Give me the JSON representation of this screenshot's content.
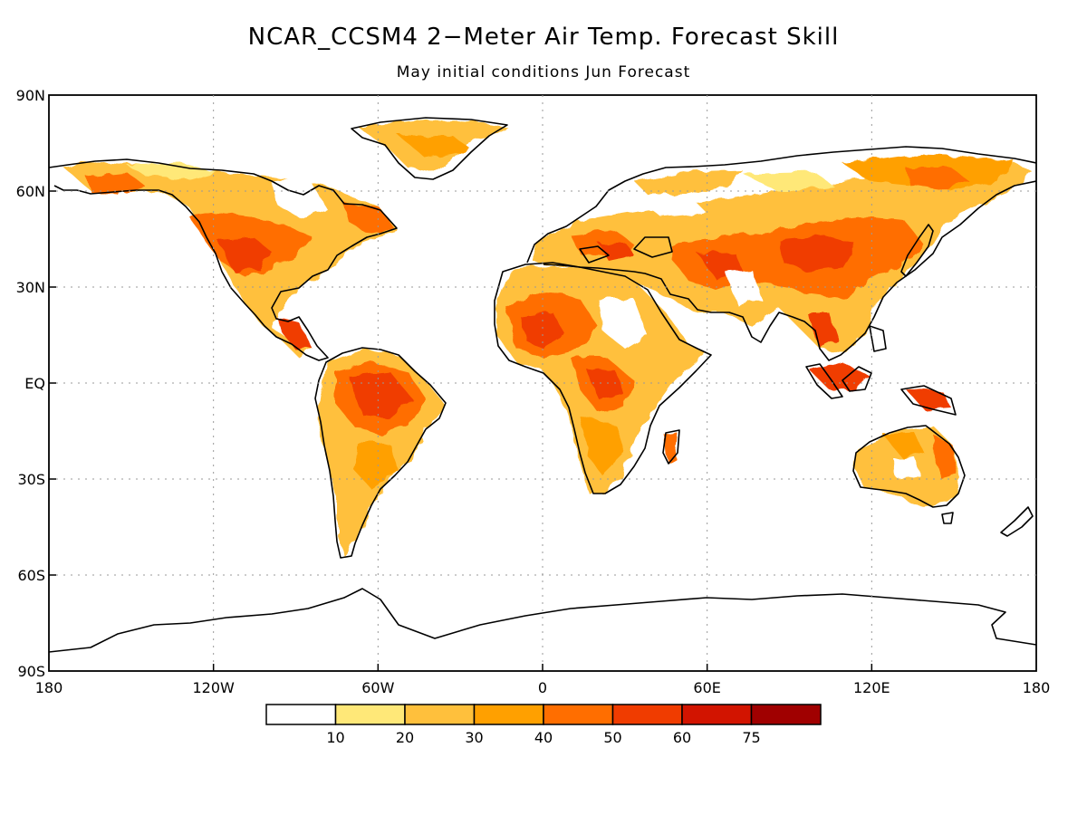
{
  "title": "NCAR_CCSM4 2−Meter Air Temp. Forecast Skill",
  "subtitle": "May initial conditions  Jun Forecast",
  "map": {
    "type": "filled-contour-world-map",
    "projection": "cylindrical equidistant",
    "lon_range": [
      -180,
      180
    ],
    "lat_range": [
      -90,
      90
    ],
    "grid": "dotted",
    "lat_ticks": [
      "90N",
      "60N",
      "30N",
      "EQ",
      "30S",
      "60S",
      "90S"
    ],
    "lon_ticks": [
      "180",
      "120W",
      "60W",
      "0",
      "60E",
      "120E",
      "180"
    ]
  },
  "colorbar": {
    "labels": [
      "10",
      "20",
      "30",
      "40",
      "50",
      "60",
      "75"
    ],
    "colors": [
      "#ffffff",
      "#ffe878",
      "#ffc03c",
      "#ffa000",
      "#ff6e00",
      "#f03c00",
      "#d21400",
      "#a00000"
    ]
  }
}
